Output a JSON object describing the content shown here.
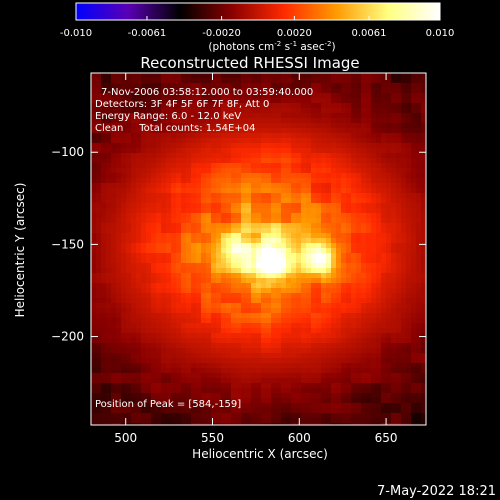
{
  "colorbar": {
    "tick_labels": [
      "-0.010",
      "-0.0061",
      "-0.0020",
      "0.0020",
      "0.0061",
      "0.010"
    ],
    "tick_values": [
      -0.01,
      -0.0061,
      -0.002,
      0.002,
      0.0061,
      0.01
    ],
    "range": [
      -0.01,
      0.01
    ],
    "units_parts": [
      "(photons cm",
      "-2",
      " s",
      "-1",
      " asec",
      "-2",
      ")"
    ],
    "stops": [
      "#0000ff",
      "#5a00b4",
      "#000000",
      "#8a0000",
      "#ff2a00",
      "#ff9a00",
      "#ffff80",
      "#ffffff"
    ]
  },
  "chart_data": {
    "type": "heatmap",
    "title": "Reconstructed RHESSI Image",
    "xlabel": "Heliocentric X (arcsec)",
    "ylabel": "Heliocentric Y (arcsec)",
    "xlim": [
      480,
      673
    ],
    "ylim": [
      -248,
      -57
    ],
    "x_ticks": [
      500,
      550,
      600,
      650
    ],
    "y_ticks": [
      -100,
      -150,
      -200
    ],
    "x_tick_labels": [
      "500",
      "550",
      "600",
      "650"
    ],
    "y_tick_labels": [
      "−100",
      "−150",
      "−200"
    ],
    "grid": false,
    "peak": {
      "x": 584,
      "y": -159
    },
    "sources": [
      {
        "x": 584,
        "y": -159,
        "amplitude": 1.0,
        "sigma": 7
      },
      {
        "x": 612,
        "y": -157,
        "amplitude": 0.6,
        "sigma": 6
      },
      {
        "x": 563,
        "y": -155,
        "amplitude": 0.35,
        "sigma": 7
      }
    ],
    "annotations": {
      "time_range": "7-Nov-2006 03:58:12.000 to 03:59:40.000",
      "detectors": "Detectors: 3F 4F 5F 6F 7F 8F, Att 0",
      "energy": "Energy Range: 6.0 - 12.0 keV",
      "clean": "Clean     Total counts: 1.54E+04",
      "peak_position": "Position of Peak = [584,-159]"
    }
  },
  "footer": {
    "date": "7-May-2022 18:21"
  }
}
